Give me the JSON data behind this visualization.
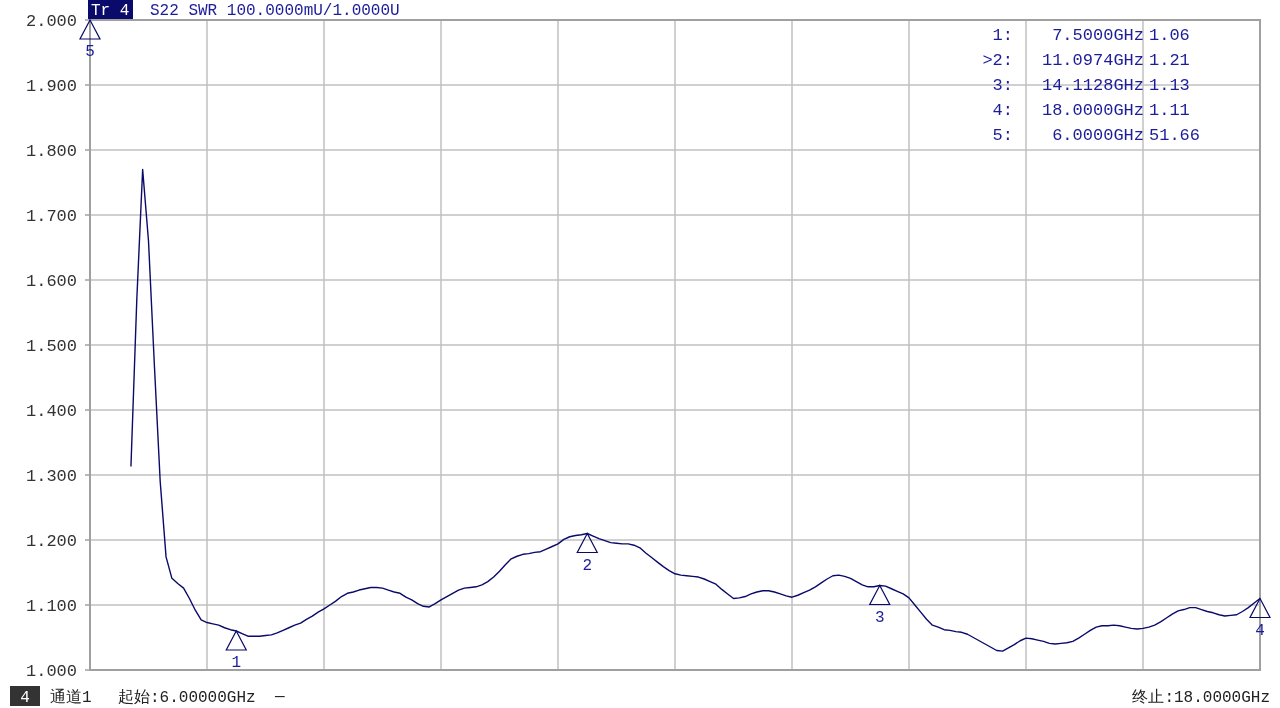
{
  "chart_data": {
    "type": "line",
    "categories": [
      null,
      null,
      null,
      null,
      null,
      null,
      null,
      null,
      null,
      null,
      null,
      null,
      null,
      null,
      null,
      null,
      null,
      null,
      null,
      null,
      null,
      null,
      null,
      null,
      null,
      null,
      null,
      null,
      null,
      null,
      null,
      null,
      null,
      null,
      null,
      null,
      null,
      null,
      null,
      null,
      null,
      null,
      null,
      null,
      null,
      null,
      null,
      null,
      null,
      null,
      null,
      null,
      null,
      null,
      null,
      null,
      null,
      null,
      null,
      null,
      null,
      null,
      null,
      null,
      null,
      null,
      null,
      null,
      null,
      null,
      null,
      null,
      null,
      null,
      null,
      null,
      null,
      null,
      null,
      null,
      null,
      null,
      null,
      null,
      null,
      null,
      null,
      null,
      null,
      null,
      null,
      null,
      null,
      null,
      null,
      null,
      null,
      null,
      null,
      null,
      null,
      null,
      null,
      null,
      null,
      null,
      null,
      null,
      null,
      null,
      null,
      null,
      null,
      null,
      null,
      null,
      null,
      null,
      null,
      null,
      null,
      null,
      null,
      null,
      null,
      null,
      null,
      null,
      null,
      null,
      null,
      null,
      null,
      null,
      null,
      null,
      null,
      null,
      null,
      null,
      null,
      null,
      null,
      null,
      null,
      null,
      null,
      null,
      null,
      null,
      null,
      null,
      null,
      null,
      null,
      null,
      null,
      null,
      null,
      null,
      null,
      null,
      null,
      null,
      null,
      null,
      null,
      null,
      null,
      null,
      null,
      null,
      null,
      null,
      null,
      null,
      null,
      null,
      null,
      null,
      null,
      null,
      null,
      null,
      null,
      null,
      null,
      null,
      null,
      null,
      null,
      null,
      null,
      null,
      null,
      null,
      null,
      null,
      null,
      null,
      null
    ],
    "series": [
      {
        "color": "#0a0a6a",
        "values": [
          null,
          null,
          null,
          null,
          null,
          null,
          null,
          1.313,
          1.57,
          1.77,
          1.66,
          1.47,
          1.29,
          1.174,
          1.141,
          1.133,
          1.126,
          1.11,
          1.092,
          1.077,
          1.073,
          1.071,
          1.069,
          1.065,
          1.062,
          1.06,
          1.056,
          1.052,
          1.052,
          1.052,
          1.053,
          1.054,
          1.057,
          1.061,
          1.065,
          1.069,
          1.072,
          1.078,
          1.083,
          1.089,
          1.094,
          1.1,
          1.106,
          1.113,
          1.118,
          1.12,
          1.123,
          1.125,
          1.127,
          1.127,
          1.126,
          1.123,
          1.12,
          1.118,
          1.112,
          1.108,
          1.102,
          1.098,
          1.097,
          1.102,
          1.108,
          1.113,
          1.118,
          1.123,
          1.126,
          1.127,
          1.128,
          1.131,
          1.136,
          1.143,
          1.152,
          1.162,
          1.171,
          1.175,
          1.178,
          1.179,
          1.181,
          1.182,
          1.186,
          1.19,
          1.194,
          1.201,
          1.205,
          1.207,
          1.208,
          1.21,
          1.206,
          1.202,
          1.199,
          1.196,
          1.195,
          1.194,
          1.194,
          1.192,
          1.188,
          1.18,
          1.173,
          1.166,
          1.159,
          1.153,
          1.148,
          1.146,
          1.145,
          1.144,
          1.143,
          1.14,
          1.136,
          1.132,
          1.124,
          1.117,
          1.11,
          1.111,
          1.113,
          1.117,
          1.12,
          1.122,
          1.122,
          1.12,
          1.117,
          1.114,
          1.112,
          1.115,
          1.119,
          1.123,
          1.128,
          1.134,
          1.14,
          1.145,
          1.146,
          1.144,
          1.141,
          1.136,
          1.131,
          1.128,
          1.128,
          1.13,
          1.129,
          1.125,
          1.121,
          1.117,
          1.111,
          1.1,
          1.089,
          1.078,
          1.069,
          1.066,
          1.062,
          1.061,
          1.059,
          1.058,
          1.055,
          1.05,
          1.045,
          1.04,
          1.035,
          1.03,
          1.029,
          1.034,
          1.039,
          1.045,
          1.049,
          1.048,
          1.046,
          1.044,
          1.041,
          1.04,
          1.041,
          1.042,
          1.044,
          1.049,
          1.055,
          1.061,
          1.066,
          1.068,
          1.068,
          1.069,
          1.068,
          1.066,
          1.064,
          1.063,
          1.064,
          1.066,
          1.069,
          1.074,
          1.08,
          1.086,
          1.091,
          1.093,
          1.096,
          1.096,
          1.093,
          1.09,
          1.088,
          1.085,
          1.083,
          1.084,
          1.085,
          1.09,
          1.096,
          1.103,
          1.11
        ]
      }
    ],
    "ylim": [
      1,
      2
    ],
    "yticks": [
      {
        "value": 1,
        "label": "1.000"
      },
      {
        "value": 1.1,
        "label": "1.100"
      },
      {
        "value": 1.2,
        "label": "1.200"
      },
      {
        "value": 1.3,
        "label": "1.300"
      },
      {
        "value": 1.4,
        "label": "1.400"
      },
      {
        "value": 1.5,
        "label": "1.500"
      },
      {
        "value": 1.6,
        "label": "1.600"
      },
      {
        "value": 1.7,
        "label": "1.700"
      },
      {
        "value": 1.8,
        "label": "1.800"
      },
      {
        "value": 1.9,
        "label": "1.900"
      },
      {
        "value": 2,
        "label": "2.000"
      }
    ],
    "grid": true,
    "annotations": [
      "Tr 4",
      "S22 SWR 100.0000mU/1.0000U",
      "1: 7.5000GHz 1.06",
      ">2: 11.0974GHz 1.21",
      "3: 14.1128GHz 1.13",
      "4: 18.0000GHz 1.11",
      "5: 6.0000GHz 51.66",
      "4",
      "通道1",
      "起始:6.00000GHz",
      "—",
      "终止:18.0000GHz",
      "5",
      {
        "text": "1",
        "y": 1.06
      },
      {
        "text": "2",
        "y": 1.21
      },
      {
        "text": "3",
        "y": 1.13
      },
      {
        "text": "4",
        "y": 1.11
      }
    ]
  }
}
